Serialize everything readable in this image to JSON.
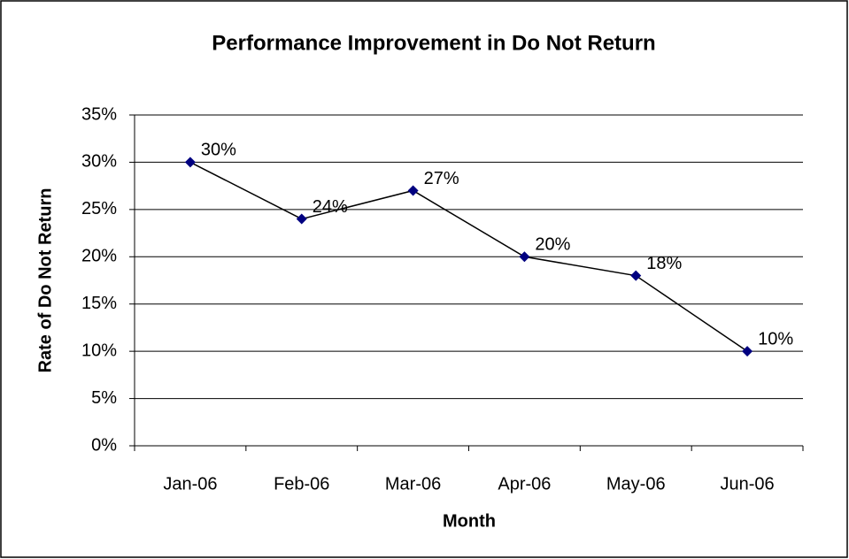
{
  "chart_data": {
    "type": "line",
    "title": "Performance Improvement in Do Not Return",
    "x_label": "Month",
    "y_label": "Rate of Do Not Return",
    "categories": [
      "Jan-06",
      "Feb-06",
      "Mar-06",
      "Apr-06",
      "May-06",
      "Jun-06"
    ],
    "series": [
      {
        "name": "Rate of Do Not Return",
        "color": "#000080",
        "line_color": "#000000",
        "values": [
          30,
          24,
          27,
          20,
          18,
          10
        ],
        "value_labels": [
          "30%",
          "24%",
          "27%",
          "20%",
          "18%",
          "10%"
        ]
      }
    ],
    "ylim": [
      0,
      35
    ],
    "yticks": [
      {
        "value": 0,
        "label": "0%"
      },
      {
        "value": 5,
        "label": "5%"
      },
      {
        "value": 10,
        "label": "10%"
      },
      {
        "value": 15,
        "label": "15%"
      },
      {
        "value": 20,
        "label": "20%"
      },
      {
        "value": 25,
        "label": "25%"
      },
      {
        "value": 30,
        "label": "30%"
      },
      {
        "value": 35,
        "label": "35%"
      }
    ],
    "grid": true
  }
}
